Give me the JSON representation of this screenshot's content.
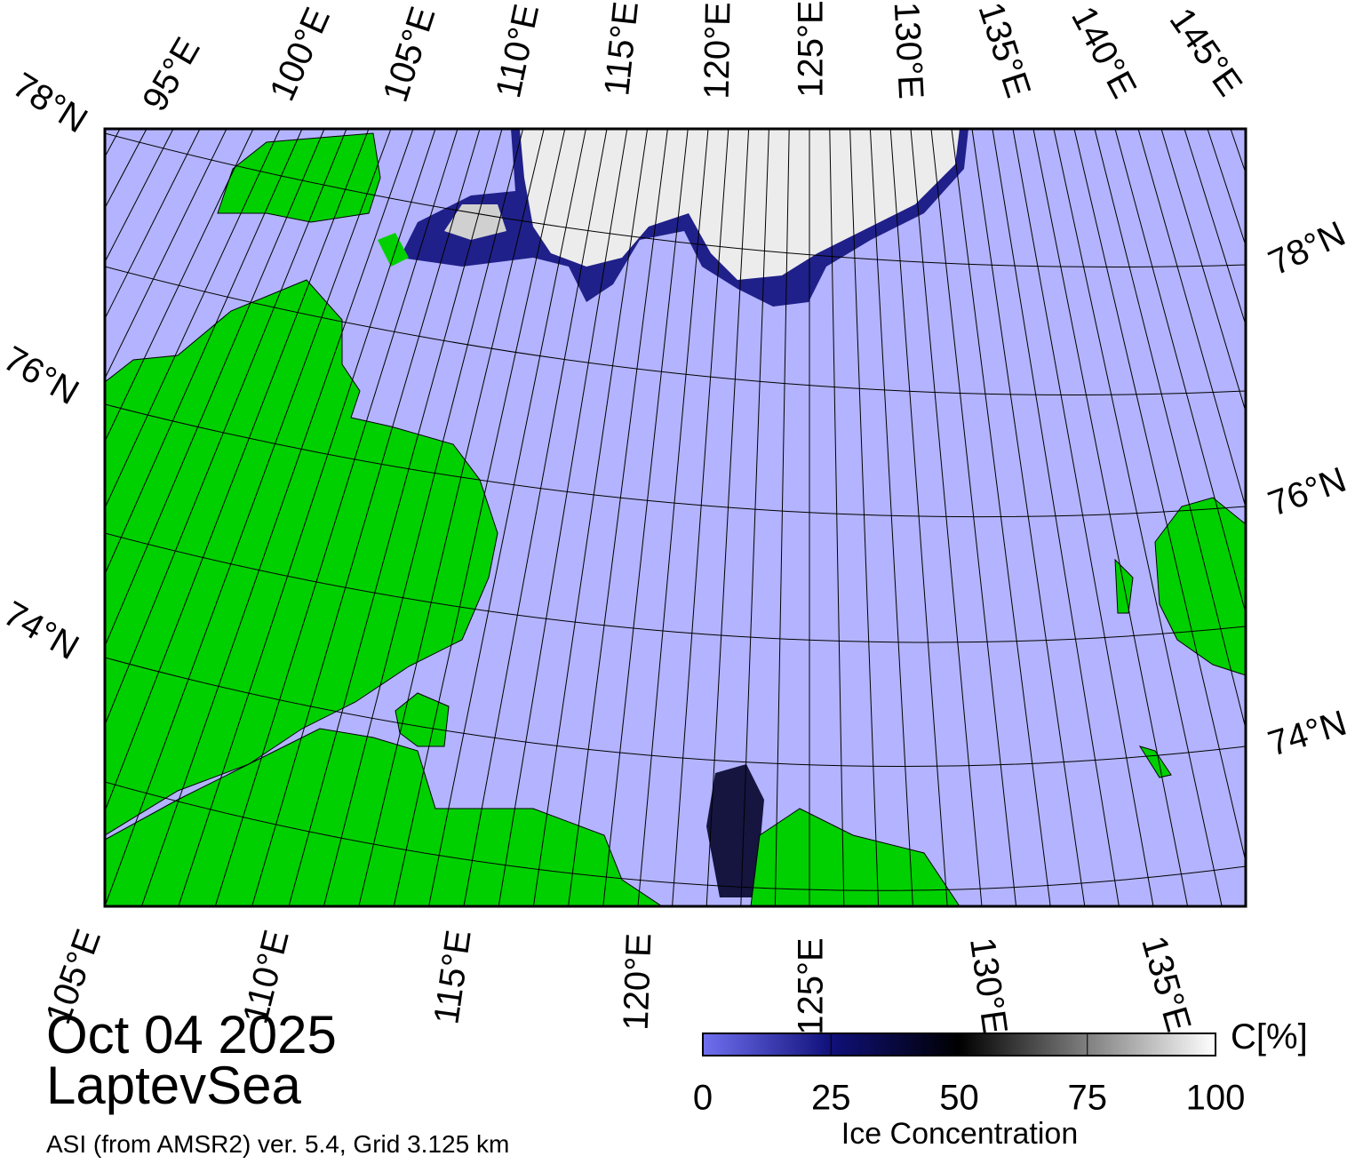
{
  "map": {
    "top_labels": [
      "78°N",
      "95°E",
      "100°E",
      "105°E",
      "110°E",
      "115°E",
      "120°E",
      "125°E",
      "130°E",
      "135°E",
      "140°E",
      "145°E"
    ],
    "left_labels": [
      "76°N",
      "74°N"
    ],
    "right_labels": [
      "78°N",
      "76°N",
      "74°N"
    ],
    "bottom_labels": [
      "105°E",
      "110°E",
      "115°E",
      "120°E",
      "125°E",
      "130°E",
      "135°E"
    ]
  },
  "date": "Oct 04 2025",
  "region": "LaptevSea",
  "source": "ASI (from AMSR2) ver. 5.4,  Grid 3.125 km",
  "colorbar": {
    "title": "Ice Concentration",
    "unit": "C[%]",
    "lim": [
      0,
      100
    ],
    "ticks": [
      0,
      25,
      50,
      75,
      100
    ]
  }
}
